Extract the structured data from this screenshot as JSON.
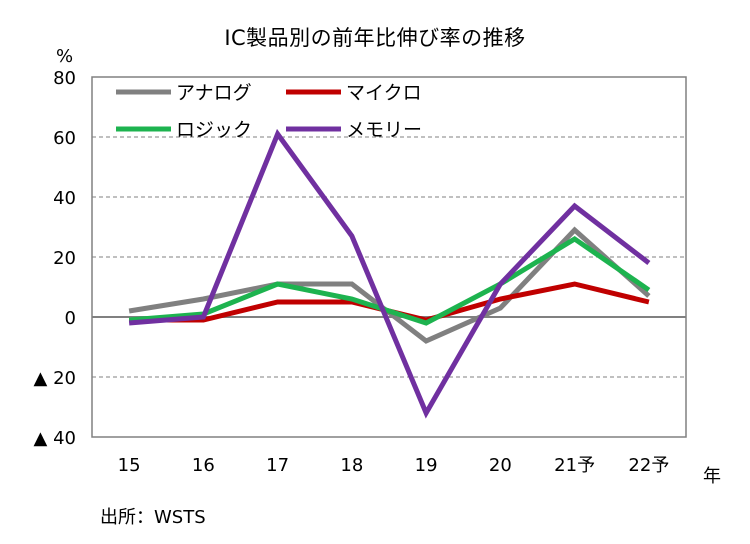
{
  "chart_data": {
    "type": "line",
    "title": "IC製品別の前年比伸び率の推移",
    "ylabel": "%",
    "xlabel": "年",
    "source": "出所：WSTS",
    "categories": [
      "15",
      "16",
      "17",
      "18",
      "19",
      "20",
      "21予",
      "22予"
    ],
    "ylim": [
      -40,
      80
    ],
    "yticks": [
      80,
      60,
      40,
      20,
      0,
      -20,
      -40
    ],
    "ytick_labels": [
      "80",
      "60",
      "40",
      "20",
      "0",
      "▲ 20",
      "▲ 40"
    ],
    "grid": true,
    "legend_position": "top-left",
    "series": [
      {
        "name": "アナログ",
        "color": "#808080",
        "values": [
          2,
          6,
          11,
          11,
          -8,
          3,
          29,
          7
        ]
      },
      {
        "name": "マイクロ",
        "color": "#c00000",
        "values": [
          -1,
          -1,
          5,
          5,
          -1,
          6,
          11,
          5
        ]
      },
      {
        "name": "ロジック",
        "color": "#1db34f",
        "values": [
          -1,
          1,
          11,
          6,
          -2,
          11,
          26,
          9
        ]
      },
      {
        "name": "メモリー",
        "color": "#7030a0",
        "values": [
          -2,
          0,
          61,
          27,
          -32,
          11,
          37,
          18
        ]
      }
    ]
  }
}
